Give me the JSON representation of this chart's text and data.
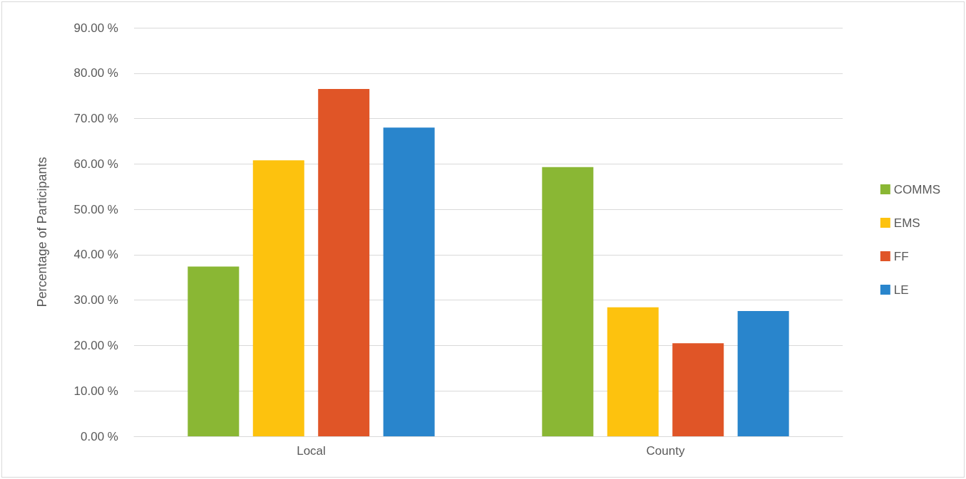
{
  "chart_data": {
    "type": "bar",
    "ylabel": "Percentage of Participants",
    "categories": [
      "Local",
      "County"
    ],
    "series": [
      {
        "name": "COMMS",
        "color": "#8ab734",
        "values": [
          37.4,
          59.3
        ]
      },
      {
        "name": "EMS",
        "color": "#fdc20e",
        "values": [
          60.8,
          28.4
        ]
      },
      {
        "name": "FF",
        "color": "#e05527",
        "values": [
          76.5,
          20.5
        ]
      },
      {
        "name": "LE",
        "color": "#2985cc",
        "values": [
          68.0,
          27.6
        ]
      }
    ],
    "ylim": [
      0,
      90
    ],
    "yticks": [
      {
        "value": 0,
        "label": "0.00 %"
      },
      {
        "value": 10,
        "label": "10.00 %"
      },
      {
        "value": 20,
        "label": "20.00 %"
      },
      {
        "value": 30,
        "label": "30.00 %"
      },
      {
        "value": 40,
        "label": "40.00 %"
      },
      {
        "value": 50,
        "label": "50.00 %"
      },
      {
        "value": 60,
        "label": "60.00 %"
      },
      {
        "value": 70,
        "label": "70.00 %"
      },
      {
        "value": 80,
        "label": "80.00 %"
      },
      {
        "value": 90,
        "label": "90.00 %"
      }
    ],
    "grid": true,
    "legend": "right"
  }
}
